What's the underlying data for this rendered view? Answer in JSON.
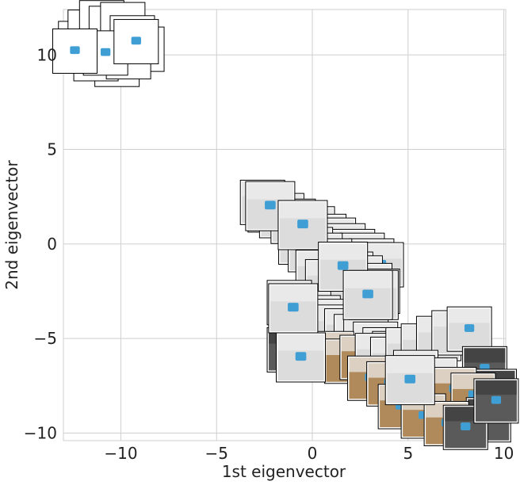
{
  "chart_data": {
    "type": "scatter",
    "xlabel": "1st eigenvector",
    "ylabel": "2nd eigenvector",
    "xlim": [
      -13.0,
      10.1
    ],
    "ylim": [
      -10.4,
      12.4
    ],
    "xticks": [
      -10,
      -5,
      0,
      5,
      10
    ],
    "yticks": [
      10,
      5,
      0,
      -5,
      -10
    ],
    "xtick_labels": [
      "−10",
      "−5",
      "0",
      "5",
      "10"
    ],
    "ytick_labels": [
      "10",
      "5",
      "0",
      "−5",
      "−10"
    ],
    "grid": true,
    "marker": "image-thumbnail",
    "colors": {
      "grid": "#cfcfcf",
      "frame": "#000000",
      "photo_gray": "#c9c9c9",
      "photo_dark": "#5a5a5a",
      "object_blue": "#3f9fd4",
      "wood": "#b08a5a"
    },
    "series": [
      {
        "x": [
          -12.1,
          -11.6,
          -11.0,
          -10.5,
          -9.9,
          -9.4,
          -8.9,
          -10.2,
          -11.3,
          -9.6,
          -10.8,
          -12.4,
          -9.2
        ],
        "y": [
          10.6,
          11.2,
          11.7,
          11.4,
          11.6,
          10.9,
          10.3,
          9.5,
          9.8,
          9.9,
          10.1,
          10.2,
          10.7
        ],
        "kind": [
          "white",
          "white",
          "white",
          "white",
          "white",
          "white",
          "white",
          "white",
          "white",
          "white",
          "white",
          "white",
          "white"
        ]
      },
      {
        "x": [
          -2.6,
          -2.2,
          -1.6,
          -1.0,
          -0.5,
          0.0,
          0.6,
          1.1,
          1.6,
          2.1,
          2.6,
          3.1,
          3.6,
          -0.6,
          -0.1,
          0.4,
          0.9,
          1.4,
          2.0,
          2.5,
          3.0,
          3.4,
          0.3,
          0.8
        ],
        "y": [
          2.2,
          1.8,
          1.5,
          1.2,
          1.0,
          0.8,
          0.4,
          0.2,
          -0.1,
          -0.4,
          -0.6,
          -0.9,
          -1.1,
          0.1,
          -0.3,
          -0.6,
          -0.9,
          -1.3,
          -1.6,
          -1.8,
          -2.2,
          -2.5,
          -1.5,
          -2.0
        ],
        "kind": [
          "gray",
          "gray",
          "gray",
          "gray",
          "gray",
          "gray",
          "gray",
          "gray",
          "gray",
          "gray",
          "gray",
          "gray",
          "gray",
          "gray",
          "gray",
          "gray",
          "gray",
          "gray",
          "gray",
          "gray",
          "gray",
          "gray",
          "gray",
          "gray"
        ]
      },
      {
        "x": [
          -1.2,
          -0.7,
          -0.2,
          0.3,
          0.8,
          1.3,
          1.8,
          2.3,
          2.8,
          3.3,
          3.8,
          4.3
        ],
        "y": [
          -3.1,
          -3.4,
          -3.6,
          -3.9,
          -4.1,
          -4.4,
          -4.6,
          -4.9,
          -5.1,
          -5.3,
          -5.6,
          -5.8
        ],
        "kind": [
          "gray",
          "gray",
          "gray",
          "gray",
          "gray",
          "gray",
          "gray",
          "gray",
          "gray",
          "gray",
          "gray",
          "gray"
        ]
      },
      {
        "x": [
          -1.2,
          -0.7,
          0.2,
          1.0,
          1.8,
          2.6,
          3.4,
          4.2,
          5.0,
          5.8,
          6.6,
          7.4,
          8.2,
          9.0,
          9.5,
          3.0,
          4.0,
          5.0,
          6.0,
          7.0,
          8.0,
          9.0,
          5.4,
          6.4,
          7.4,
          8.4,
          9.2,
          4.6,
          5.8,
          7.0,
          8.0,
          9.6
        ],
        "y": [
          -5.6,
          -5.9,
          -6.1,
          -5.8,
          -6.2,
          -6.0,
          -5.9,
          -6.1,
          -5.6,
          -5.4,
          -5.0,
          -4.7,
          -4.5,
          -6.6,
          -7.8,
          -7.1,
          -7.4,
          -7.6,
          -8.1,
          -8.4,
          -8.7,
          -8.9,
          -6.8,
          -7.2,
          -7.7,
          -8.0,
          -9.3,
          -8.6,
          -9.1,
          -9.5,
          -9.7,
          -8.3
        ],
        "kind": [
          "dark",
          "dark",
          "dark",
          "wood",
          "wood",
          "wood",
          "gray",
          "gray",
          "gray",
          "gray",
          "gray",
          "gray",
          "gray",
          "dark",
          "dark",
          "wood",
          "wood",
          "wood",
          "wood",
          "dark",
          "dark",
          "dark",
          "gray",
          "gray",
          "wood",
          "wood",
          "dark",
          "wood",
          "wood",
          "wood",
          "dark",
          "dark"
        ]
      },
      {
        "x": [
          -2.2,
          -0.5,
          1.6,
          3.2,
          -1.0,
          2.9,
          -0.6,
          5.1
        ],
        "y": [
          2.0,
          1.0,
          -1.2,
          -2.7,
          -3.4,
          -2.7,
          -6.0,
          -7.2
        ],
        "kind": [
          "front",
          "front",
          "front",
          "front",
          "front",
          "front",
          "front",
          "front"
        ]
      }
    ]
  }
}
